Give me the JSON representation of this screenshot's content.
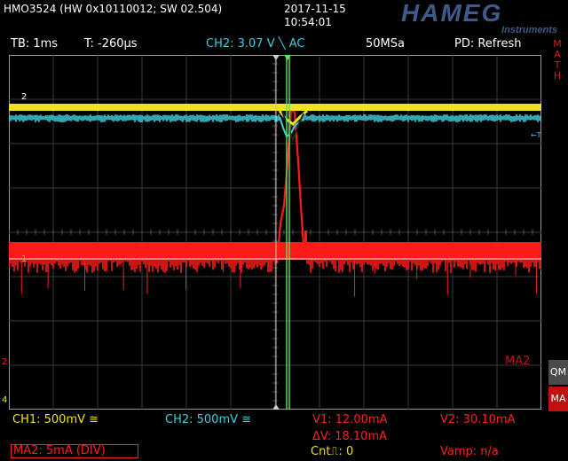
{
  "header": {
    "model": "HMO3524 (HW 0x10110012; SW 02.504)",
    "date": "2017-11-15",
    "time": "10:54:01",
    "logo_main": "HAMEG",
    "logo_sub": "Instruments"
  },
  "infobar": {
    "timebase": "TB: 1ms",
    "trigger_time": "T: -260µs",
    "trigger_source": "CH2: 3.07 V ╲ AC",
    "sample_rate": "50MSa",
    "display_mode": "PD: Refresh"
  },
  "side": {
    "math": "MATH",
    "qm": "QM",
    "ma": "MA"
  },
  "markers": {
    "ch2": "2",
    "ma2_label": "MA2",
    "ch1": "1",
    "ch4": "4",
    "ch2_right": "←T"
  },
  "footer": {
    "ch1": "CH1: 500mV ≅",
    "ch2": "CH2: 500mV ≅",
    "v1": "V1: 12.00mA",
    "v2": "V2: 30.10mA",
    "dv": "ΔV: 18.10mA",
    "ma2": "MA2: 5mA (DIV)",
    "cnt": "Cnt⎍: 0",
    "vamp": "Vamp: n/a"
  },
  "colors": {
    "ch1": "#f0e020",
    "ch2": "#3fd0e0",
    "math": "#ff1a1a",
    "cursor": "#60e060",
    "grid": "#3a3a3a"
  }
}
